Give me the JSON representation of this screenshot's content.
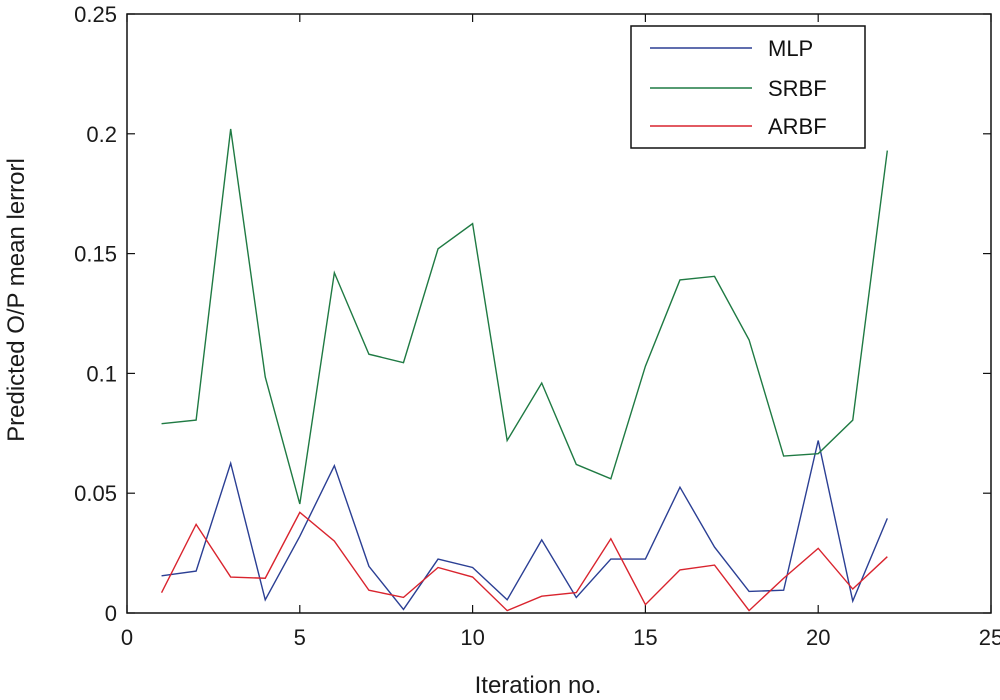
{
  "chart_data": {
    "type": "line",
    "title": "",
    "xlabel": "Iteration no.",
    "ylabel": "Predicted O/P mean lerrorl",
    "xlim": [
      0,
      25
    ],
    "ylim": [
      0,
      0.25
    ],
    "x_ticks": [
      0,
      5,
      10,
      15,
      20,
      25
    ],
    "x_tick_labels": [
      "0",
      "5",
      "10",
      "15",
      "20",
      "25"
    ],
    "y_ticks": [
      0,
      0.05,
      0.1,
      0.15,
      0.2,
      0.25
    ],
    "y_tick_labels": [
      "0",
      "0.05",
      "0.1",
      "0.15",
      "0.2",
      "0.25"
    ],
    "grid": false,
    "legend_position": "top-right",
    "x": [
      1,
      2,
      3,
      4,
      5,
      6,
      7,
      8,
      9,
      10,
      11,
      12,
      13,
      14,
      15,
      16,
      17,
      18,
      19,
      20,
      21,
      22
    ],
    "series": [
      {
        "name": "MLP",
        "color": "#2b3f94",
        "values": [
          0.0155,
          0.0175,
          0.0625,
          0.0055,
          0.032,
          0.0615,
          0.0195,
          0.0015,
          0.0225,
          0.019,
          0.0055,
          0.0305,
          0.0065,
          0.0225,
          0.0225,
          0.0525,
          0.0275,
          0.009,
          0.0095,
          0.072,
          0.005,
          0.0395
        ]
      },
      {
        "name": "SRBF",
        "color": "#1f7a43",
        "values": [
          0.079,
          0.0805,
          0.202,
          0.0985,
          0.0455,
          0.142,
          0.108,
          0.1045,
          0.152,
          0.1625,
          0.072,
          0.096,
          0.062,
          0.056,
          0.103,
          0.139,
          0.1405,
          0.114,
          0.0655,
          0.0665,
          0.0805,
          0.193
        ]
      },
      {
        "name": "ARBF",
        "color": "#d9242e",
        "values": [
          0.0085,
          0.037,
          0.015,
          0.0145,
          0.042,
          0.03,
          0.0095,
          0.0065,
          0.019,
          0.015,
          0.001,
          0.007,
          0.0085,
          0.031,
          0.0035,
          0.018,
          0.02,
          0.001,
          0.0145,
          0.027,
          0.01,
          0.0235
        ]
      }
    ]
  }
}
